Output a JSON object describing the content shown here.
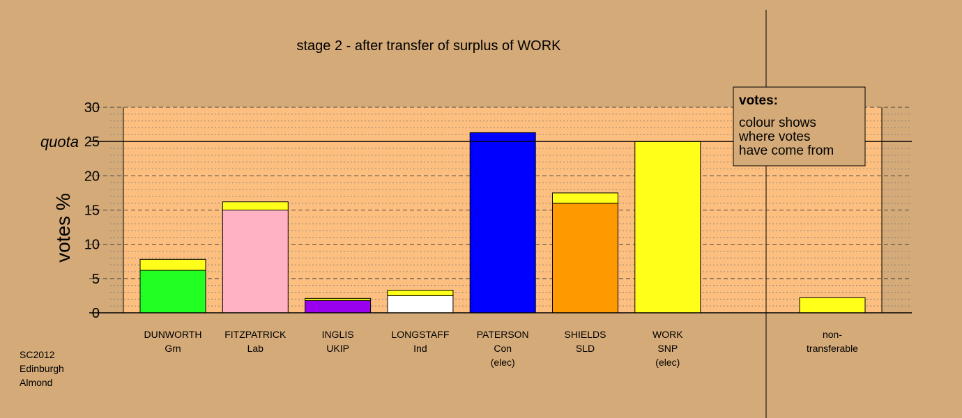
{
  "chart_data": {
    "type": "bar",
    "stacked": true,
    "title": "stage 2 - after transfer of surplus of WORK",
    "ylabel": "votes %",
    "ylim": [
      0,
      30
    ],
    "yticks": [
      "0",
      "5",
      "10",
      "15",
      "20",
      "25",
      "30"
    ],
    "quota": {
      "value": 25,
      "label": "quota"
    },
    "grid": true,
    "categories": [
      {
        "lines": [
          "DUNWORTH",
          "Grn"
        ],
        "segments": [
          {
            "value": 6.2,
            "color": "#22ff22"
          },
          {
            "value": 1.6,
            "color": "#ffff19"
          }
        ]
      },
      {
        "lines": [
          "FITZPATRICK",
          "Lab"
        ],
        "segments": [
          {
            "value": 15.0,
            "color": "#ffb2c4"
          },
          {
            "value": 1.2,
            "color": "#ffff19"
          }
        ]
      },
      {
        "lines": [
          "INGLIS",
          "UKIP"
        ],
        "segments": [
          {
            "value": 1.8,
            "color": "#9900ee"
          },
          {
            "value": 0.3,
            "color": "#ffff19"
          }
        ]
      },
      {
        "lines": [
          "LONGSTAFF",
          "Ind"
        ],
        "segments": [
          {
            "value": 2.5,
            "color": "#ffffff"
          },
          {
            "value": 0.8,
            "color": "#ffff19"
          }
        ]
      },
      {
        "lines": [
          "PATERSON",
          "Con",
          "(elec)"
        ],
        "segments": [
          {
            "value": 26.3,
            "color": "#0000ff"
          }
        ]
      },
      {
        "lines": [
          "SHIELDS",
          "SLD"
        ],
        "segments": [
          {
            "value": 16.0,
            "color": "#ff9900"
          },
          {
            "value": 1.5,
            "color": "#ffff19"
          }
        ]
      },
      {
        "lines": [
          "WORK",
          "SNP",
          "(elec)"
        ],
        "segments": [
          {
            "value": 25.0,
            "color": "#ffff19"
          }
        ]
      }
    ],
    "nontransferable": {
      "lines": [
        "non-",
        "transferable"
      ],
      "value": 2.2,
      "color": "#ffff19"
    },
    "legend": {
      "heading": "votes:",
      "lines": [
        "colour shows",
        "where votes",
        "have come from"
      ],
      "placement": "top-right"
    }
  },
  "footer": [
    "SC2012",
    "Edinburgh",
    "Almond"
  ],
  "colors": {
    "background": "#d4aa78",
    "plot_background": "#fdbf7f"
  }
}
